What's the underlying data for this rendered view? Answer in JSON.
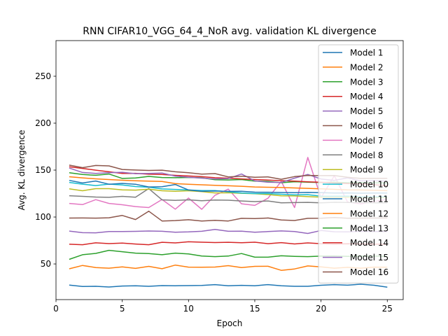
{
  "chart_data": {
    "type": "line",
    "title": "RNN CIFAR10_VGG_64_4_NoR avg. validation KL divergence",
    "xlabel": "Epoch",
    "ylabel": "Avg. KL divergence",
    "xlim": [
      0,
      26.2
    ],
    "ylim": [
      12,
      288
    ],
    "xticks": [
      0,
      5,
      10,
      15,
      20,
      25
    ],
    "yticks": [
      50,
      100,
      150,
      200,
      250
    ],
    "grid": false,
    "legend_position": "top-right",
    "x": [
      1,
      2,
      3,
      4,
      5,
      6,
      7,
      8,
      9,
      10,
      11,
      12,
      13,
      14,
      15,
      16,
      17,
      18,
      19,
      20,
      21,
      22,
      23,
      24,
      25
    ],
    "series": [
      {
        "name": "Model 1",
        "color": "#1f77b4",
        "values": [
          27.5,
          26,
          26.2,
          25.4,
          26.5,
          26.7,
          26.2,
          26.9,
          26.8,
          26.9,
          27.1,
          28,
          26.7,
          27.2,
          26.8,
          28,
          26.8,
          26.2,
          26.2,
          27.3,
          28,
          27.4,
          28.4,
          27.3,
          25.3
        ]
      },
      {
        "name": "Model 2",
        "color": "#ff7f0e",
        "values": [
          44.8,
          48.4,
          46.2,
          45.5,
          46.8,
          45.3,
          47.4,
          44.9,
          48.8,
          46.6,
          46.5,
          46.7,
          48.2,
          46.2,
          47.4,
          47.5,
          43.2,
          44.7,
          47.9,
          46.8,
          45.5,
          46.4,
          45.5,
          46.6,
          46.5
        ]
      },
      {
        "name": "Model 3",
        "color": "#2ca02c",
        "values": [
          54.9,
          59.8,
          61.2,
          64.5,
          63,
          61.5,
          61.1,
          59.8,
          61.5,
          60.6,
          58.5,
          57.8,
          58.4,
          61.1,
          57.2,
          57.2,
          58.7,
          58.1,
          57.8,
          58.3,
          58.5,
          58.1,
          58.4,
          58.3,
          58.2
        ]
      },
      {
        "name": "Model 4",
        "color": "#d62728",
        "values": [
          71,
          70.5,
          72.5,
          71.7,
          72.3,
          71.2,
          70.5,
          73.1,
          72.4,
          73.6,
          73.2,
          72.8,
          73.1,
          72.6,
          73.2,
          71.6,
          72.7,
          71.3,
          72.4,
          71.6,
          71.2,
          71.5,
          71.3,
          71.1,
          71
        ]
      },
      {
        "name": "Model 5",
        "color": "#9467bd",
        "values": [
          85,
          83.3,
          83.2,
          84.5,
          84.6,
          84.7,
          85.1,
          84.8,
          83.8,
          84.1,
          84.8,
          86.8,
          84.8,
          84.9,
          83.8,
          84.5,
          85.2,
          84.6,
          82.5,
          85.6,
          84.3,
          84.2,
          84.8,
          84.5,
          84.6
        ]
      },
      {
        "name": "Model 6",
        "color": "#8c564b",
        "values": [
          98.9,
          99,
          98.8,
          99.2,
          101.7,
          97.3,
          106.2,
          95.8,
          96.2,
          97.1,
          95.8,
          96.5,
          95.8,
          98.6,
          98.3,
          99,
          96.8,
          96.3,
          98.6,
          98.7,
          99.4,
          98.7,
          98.8,
          98.9,
          99
        ]
      },
      {
        "name": "Model 7",
        "color": "#e377c2",
        "values": [
          114.5,
          113.2,
          118.5,
          114.5,
          113.1,
          111.1,
          110.1,
          118.7,
          108.4,
          120.2,
          108.2,
          123.2,
          129.7,
          114.1,
          112.4,
          120.1,
          138,
          110.1,
          163.5,
          120.5,
          144,
          116,
          114,
          116.5,
          119
        ]
      },
      {
        "name": "Model 8",
        "color": "#7f7f7f",
        "values": [
          122.7,
          122,
          121.3,
          121,
          122,
          121.1,
          130.3,
          118.3,
          117.8,
          118.3,
          117.4,
          118.1,
          117.9,
          117.1,
          116.4,
          117.1,
          115.2,
          115.4,
          115.6,
          115.1,
          115.7,
          115.5,
          115.4,
          115.1,
          115
        ]
      },
      {
        "name": "Model 9",
        "color": "#bcbd22",
        "values": [
          130,
          128,
          130.2,
          130.2,
          129,
          128.7,
          129.6,
          128,
          127.5,
          128,
          127.1,
          125.7,
          125.8,
          125.3,
          124.8,
          124,
          122.6,
          122.5,
          121.7,
          121.2,
          121,
          121.1,
          121,
          120.8,
          120.6
        ]
      },
      {
        "name": "Model 10",
        "color": "#17becf",
        "values": [
          136.9,
          135,
          133.5,
          135.1,
          134.1,
          132.5,
          131.8,
          129.9,
          129.4,
          128.8,
          128.2,
          128.2,
          126.9,
          125.5,
          125,
          125,
          124.3,
          123.6,
          123.8,
          122.3,
          122.2,
          122.3,
          121.6,
          121.5,
          121.6
        ]
      },
      {
        "name": "Model 11",
        "color": "#1f77b4",
        "values": [
          139,
          136.3,
          138.4,
          134.9,
          135.8,
          134.9,
          132,
          132.3,
          134.6,
          128.8,
          127.4,
          127.7,
          127.3,
          127.5,
          126.5,
          126.4,
          126.1,
          126,
          126.2,
          125.9,
          125.5,
          125.7,
          125.4,
          125.5,
          125.5
        ]
      },
      {
        "name": "Model 12",
        "color": "#ff7f0e",
        "values": [
          142.9,
          141.7,
          140.7,
          139.9,
          139.2,
          138.6,
          138.2,
          137.9,
          135.6,
          134.9,
          134.3,
          133.8,
          133.3,
          132.8,
          132,
          131.7,
          131.4,
          131,
          130.5,
          130,
          129.5,
          129,
          128.8,
          128.5,
          128.1
        ]
      },
      {
        "name": "Model 13",
        "color": "#2ca02c",
        "values": [
          147.2,
          145.3,
          144.5,
          145.8,
          141.1,
          141.6,
          143.3,
          142.1,
          141.9,
          142.2,
          141.8,
          139.8,
          139.5,
          139.9,
          138.2,
          137.9,
          136.6,
          137.6,
          137.2,
          136.7,
          137.2,
          136.5,
          136.8,
          136.4,
          136.4
        ]
      },
      {
        "name": "Model 14",
        "color": "#d62728",
        "values": [
          153.5,
          151.8,
          149.9,
          148.2,
          146.5,
          146.6,
          145.6,
          145.3,
          144.4,
          143.7,
          143,
          141.9,
          141.4,
          140.6,
          139.9,
          139.4,
          138.7,
          138.2,
          137.5,
          137,
          136.2,
          135.6,
          135.2,
          134.4,
          133.3
        ]
      },
      {
        "name": "Model 15",
        "color": "#9467bd",
        "values": [
          152.2,
          147.5,
          146.5,
          147.2,
          147.7,
          146.2,
          146.5,
          146.9,
          143.6,
          142.3,
          141.4,
          140.6,
          141,
          145.8,
          138.5,
          137.1,
          136.8,
          141.4,
          145.4,
          140.5,
          139,
          141.7,
          138.5,
          138.6,
          138.2
        ]
      },
      {
        "name": "Model 16",
        "color": "#8c564b",
        "values": [
          155.3,
          152.6,
          154.9,
          154.5,
          150.7,
          150.1,
          149.6,
          149.9,
          148.2,
          147.2,
          145.7,
          146.3,
          142.8,
          143.4,
          142.3,
          142.8,
          140.2,
          143.1,
          144.3,
          144.1,
          144.2,
          142.3,
          141.1,
          141.3,
          141.2
        ]
      }
    ]
  }
}
